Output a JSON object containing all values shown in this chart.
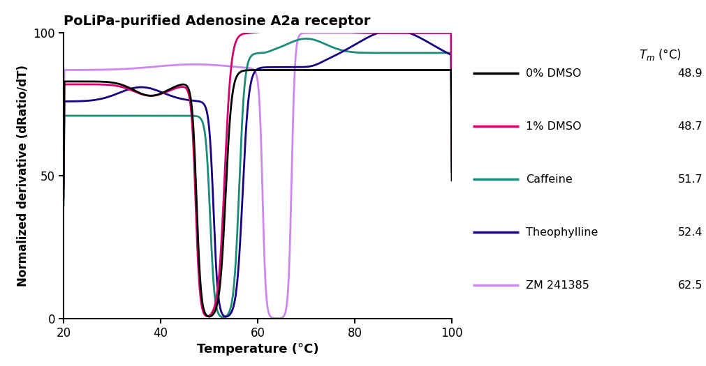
{
  "title": "PoLiPa-purified Adenosine A2a receptor",
  "xlabel": "Temperature (°C)",
  "ylabel": "Normalized derivative (dRatio/dT)",
  "xlim": [
    20,
    100
  ],
  "ylim": [
    0,
    100
  ],
  "xticks": [
    20,
    40,
    60,
    80,
    100
  ],
  "yticks": [
    0,
    50,
    100
  ],
  "series": [
    {
      "label": "0% DMSO",
      "tm": "48.9",
      "color": "#000000",
      "lw": 2.0
    },
    {
      "label": "1% DMSO",
      "tm": "48.7",
      "color": "#d4006e",
      "lw": 2.0
    },
    {
      "label": "Caffeine",
      "tm": "51.7",
      "color": "#1a8c7a",
      "lw": 2.0
    },
    {
      "label": "Theophylline",
      "tm": "52.4",
      "color": "#1a0080",
      "lw": 2.0
    },
    {
      "label": "ZM 241385",
      "tm": "62.5",
      "color": "#cc88ee",
      "lw": 2.0
    }
  ]
}
